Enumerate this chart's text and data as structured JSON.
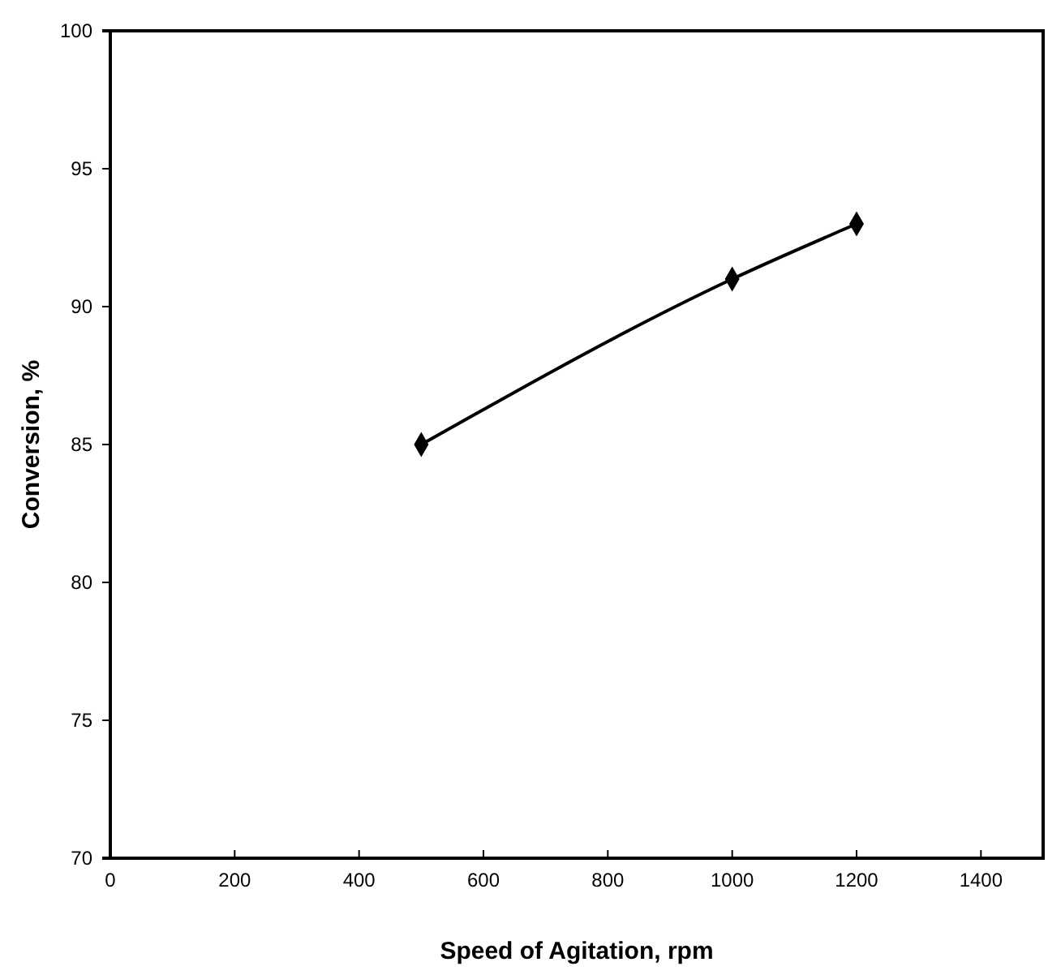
{
  "chart_data": {
    "type": "line",
    "xlabel": "Speed of Agitation, rpm",
    "ylabel": "Conversion, %",
    "x": [
      500,
      1000,
      1200
    ],
    "series": [
      {
        "color": "#000000",
        "values": [
          85,
          91,
          93
        ]
      }
    ],
    "xlim": [
      0,
      1500
    ],
    "xticks": [
      0,
      200,
      400,
      600,
      800,
      1000,
      1200,
      1400
    ],
    "ylim": [
      70,
      100
    ],
    "yticks": [
      70,
      75,
      80,
      85,
      90,
      95,
      100
    ],
    "marker": "diamond",
    "line_style": "solid"
  }
}
